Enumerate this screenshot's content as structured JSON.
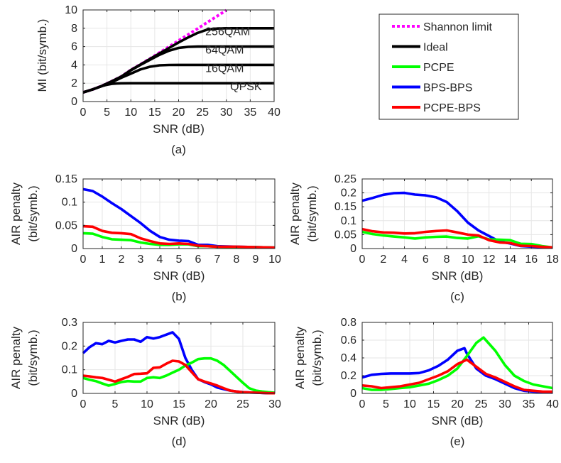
{
  "legend": {
    "entries": [
      {
        "label": "Shannon limit",
        "color": "#ff00ff",
        "dash": true
      },
      {
        "label": "Ideal",
        "color": "#000000",
        "dash": false
      },
      {
        "label": "PCPE",
        "color": "#00ff00",
        "dash": false
      },
      {
        "label": "BPS-BPS",
        "color": "#0000ff",
        "dash": false
      },
      {
        "label": "PCPE-BPS",
        "color": "#ff0000",
        "dash": false
      }
    ]
  },
  "chart_data": [
    {
      "id": "a",
      "type": "line",
      "panel_label": "(a)",
      "xlabel": "SNR (dB)",
      "ylabel": "MI (bit/symb.)",
      "xlim": [
        0,
        40
      ],
      "ylim": [
        0,
        10
      ],
      "xticks": [
        "0",
        "5",
        "10",
        "15",
        "20",
        "25",
        "30",
        "35",
        "40"
      ],
      "yticks": [
        "0",
        "2",
        "4",
        "6",
        "8",
        "10"
      ],
      "grid": true,
      "annotations": [
        {
          "text": "256QAM",
          "x": 25.6,
          "y": 7.0
        },
        {
          "text": "64QAM",
          "x": 25.6,
          "y": 5.0
        },
        {
          "text": "16QAM",
          "x": 25.6,
          "y": 3.0
        },
        {
          "text": "QPSK",
          "x": 30.8,
          "y": 1.0
        }
      ],
      "series": [
        {
          "color": "#ff00ff",
          "dash": true,
          "x": [
            0,
            2,
            4,
            6,
            8,
            10,
            12,
            14,
            16,
            18,
            20,
            22,
            24,
            26,
            28,
            30
          ],
          "y": [
            1.0,
            1.32,
            1.73,
            2.22,
            2.74,
            3.46,
            4.06,
            4.68,
            5.34,
            6.0,
            6.66,
            7.31,
            7.97,
            8.64,
            9.3,
            9.97
          ]
        },
        {
          "color": "#000000",
          "x": [
            0,
            1,
            2,
            3,
            4,
            5,
            6,
            7,
            8,
            10,
            15,
            20,
            25,
            30,
            40
          ],
          "y": [
            1.0,
            1.16,
            1.33,
            1.52,
            1.69,
            1.84,
            1.93,
            1.97,
            1.99,
            2.0,
            2.0,
            2.0,
            2.0,
            2.0,
            2.0
          ]
        },
        {
          "color": "#000000",
          "x": [
            0,
            2,
            4,
            6,
            8,
            10,
            12,
            14,
            16,
            18,
            20,
            25,
            30,
            40
          ],
          "y": [
            1.0,
            1.32,
            1.7,
            2.1,
            2.6,
            3.05,
            3.5,
            3.8,
            3.95,
            3.99,
            4.0,
            4.0,
            4.0,
            4.0
          ]
        },
        {
          "color": "#000000",
          "x": [
            0,
            2,
            4,
            6,
            8,
            10,
            12,
            14,
            16,
            18,
            20,
            22,
            24,
            26,
            30,
            40
          ],
          "y": [
            1.0,
            1.32,
            1.72,
            2.2,
            2.72,
            3.4,
            4.0,
            4.55,
            5.1,
            5.55,
            5.85,
            5.97,
            6.0,
            6.0,
            6.0,
            6.0
          ]
        },
        {
          "color": "#000000",
          "x": [
            0,
            2,
            4,
            6,
            8,
            10,
            12,
            14,
            16,
            18,
            20,
            22,
            24,
            26,
            28,
            30,
            32,
            40
          ],
          "y": [
            1.0,
            1.32,
            1.72,
            2.21,
            2.73,
            3.44,
            4.04,
            4.64,
            5.25,
            5.85,
            6.45,
            7.0,
            7.5,
            7.85,
            7.97,
            8.0,
            8.0,
            8.0
          ]
        }
      ]
    },
    {
      "id": "b",
      "type": "line",
      "panel_label": "(b)",
      "xlabel": "SNR (dB)",
      "ylabel": [
        "AIR penalty",
        "(bit/symb.)"
      ],
      "xlim": [
        0,
        10
      ],
      "ylim": [
        0,
        0.15
      ],
      "xticks": [
        "0",
        "1",
        "2",
        "3",
        "4",
        "5",
        "6",
        "7",
        "8",
        "9",
        "10"
      ],
      "yticks": [
        "0",
        "0.05",
        "0.1",
        "0.15"
      ],
      "grid": true,
      "series": [
        {
          "name": "BPS-BPS",
          "color": "#0000ff",
          "x": [
            0,
            0.5,
            1,
            1.5,
            2,
            2.5,
            3,
            3.5,
            4,
            4.5,
            5,
            5.5,
            6,
            6.5,
            7,
            8,
            9,
            10
          ],
          "y": [
            0.128,
            0.124,
            0.112,
            0.098,
            0.085,
            0.07,
            0.055,
            0.038,
            0.025,
            0.019,
            0.017,
            0.016,
            0.008,
            0.008,
            0.005,
            0.004,
            0.003,
            0.002
          ]
        },
        {
          "name": "PCPE",
          "color": "#00ff00",
          "x": [
            0,
            0.5,
            1,
            1.5,
            2,
            2.5,
            3,
            3.5,
            4,
            4.5,
            5,
            5.5,
            6,
            6.5,
            7,
            8,
            9,
            10
          ],
          "y": [
            0.033,
            0.032,
            0.025,
            0.02,
            0.019,
            0.018,
            0.013,
            0.01,
            0.008,
            0.008,
            0.009,
            0.009,
            0.005,
            0.005,
            0.004,
            0.003,
            0.003,
            0.002
          ]
        },
        {
          "name": "PCPE-BPS",
          "color": "#ff0000",
          "x": [
            0,
            0.5,
            1,
            1.5,
            2,
            2.5,
            3,
            3.5,
            4,
            4.5,
            5,
            5.5,
            6,
            6.5,
            7,
            8,
            9,
            10
          ],
          "y": [
            0.048,
            0.047,
            0.038,
            0.034,
            0.033,
            0.031,
            0.022,
            0.016,
            0.011,
            0.01,
            0.011,
            0.01,
            0.006,
            0.005,
            0.004,
            0.004,
            0.003,
            0.002
          ]
        }
      ]
    },
    {
      "id": "c",
      "type": "line",
      "panel_label": "(c)",
      "xlabel": "SNR (dB)",
      "ylabel": [
        "AIR penalty",
        "(bit/symb.)"
      ],
      "xlim": [
        0,
        18
      ],
      "ylim": [
        0,
        0.25
      ],
      "xticks": [
        "0",
        "2",
        "4",
        "6",
        "8",
        "10",
        "12",
        "14",
        "16",
        "18"
      ],
      "yticks": [
        "0",
        "0.05",
        "0.1",
        "0.15",
        "0.2",
        "0.25"
      ],
      "grid": true,
      "series": [
        {
          "name": "BPS-BPS",
          "color": "#0000ff",
          "x": [
            0,
            1,
            2,
            3,
            4,
            5,
            6,
            7,
            8,
            9,
            10,
            11,
            12,
            13,
            14,
            15,
            16,
            17,
            18
          ],
          "y": [
            0.172,
            0.182,
            0.193,
            0.199,
            0.2,
            0.194,
            0.191,
            0.184,
            0.167,
            0.134,
            0.093,
            0.065,
            0.045,
            0.025,
            0.018,
            0.009,
            0.007,
            0.005,
            0.003
          ]
        },
        {
          "name": "PCPE",
          "color": "#00ff00",
          "x": [
            0,
            1,
            2,
            3,
            4,
            5,
            6,
            7,
            8,
            9,
            10,
            11,
            12,
            13,
            14,
            15,
            16,
            17,
            18
          ],
          "y": [
            0.06,
            0.052,
            0.047,
            0.043,
            0.04,
            0.036,
            0.04,
            0.042,
            0.043,
            0.038,
            0.036,
            0.044,
            0.033,
            0.032,
            0.03,
            0.017,
            0.016,
            0.009,
            0.004
          ]
        },
        {
          "name": "PCPE-BPS",
          "color": "#ff0000",
          "x": [
            0,
            1,
            2,
            3,
            4,
            5,
            6,
            7,
            8,
            9,
            10,
            11,
            12,
            13,
            14,
            15,
            16,
            17,
            18
          ],
          "y": [
            0.07,
            0.062,
            0.058,
            0.057,
            0.054,
            0.055,
            0.06,
            0.063,
            0.065,
            0.058,
            0.05,
            0.047,
            0.03,
            0.022,
            0.02,
            0.01,
            0.009,
            0.006,
            0.004
          ]
        }
      ]
    },
    {
      "id": "d",
      "type": "line",
      "panel_label": "(d)",
      "xlabel": "SNR (dB)",
      "ylabel": [
        "AIR penalty",
        "(bit/symb.)"
      ],
      "xlim": [
        0,
        30
      ],
      "ylim": [
        0,
        0.3
      ],
      "xticks": [
        "0",
        "5",
        "10",
        "15",
        "20",
        "25",
        "30"
      ],
      "yticks": [
        "0",
        "0.1",
        "0.2",
        "0.3"
      ],
      "grid": true,
      "series": [
        {
          "name": "BPS-BPS",
          "color": "#0000ff",
          "x": [
            0,
            1,
            2,
            3,
            4,
            5,
            6,
            7,
            8,
            9,
            10,
            11,
            12,
            13,
            14,
            15,
            16,
            17,
            18,
            19,
            20,
            21,
            22,
            23,
            24,
            25,
            26,
            27,
            28,
            29,
            30
          ],
          "y": [
            0.17,
            0.195,
            0.212,
            0.208,
            0.222,
            0.215,
            0.222,
            0.228,
            0.228,
            0.218,
            0.238,
            0.232,
            0.238,
            0.248,
            0.258,
            0.23,
            0.15,
            0.1,
            0.06,
            0.048,
            0.038,
            0.025,
            0.018,
            0.012,
            0.008,
            0.005,
            0.004,
            0.003,
            0.002,
            0.001,
            0.001
          ]
        },
        {
          "name": "PCPE",
          "color": "#00ff00",
          "x": [
            0,
            1,
            2,
            3,
            4,
            5,
            6,
            7,
            8,
            9,
            10,
            11,
            12,
            13,
            14,
            15,
            16,
            17,
            18,
            19,
            20,
            21,
            22,
            23,
            24,
            25,
            26,
            27,
            28,
            29,
            30
          ],
          "y": [
            0.065,
            0.058,
            0.052,
            0.042,
            0.033,
            0.04,
            0.048,
            0.052,
            0.05,
            0.05,
            0.065,
            0.068,
            0.065,
            0.075,
            0.088,
            0.1,
            0.118,
            0.13,
            0.145,
            0.148,
            0.148,
            0.138,
            0.12,
            0.095,
            0.07,
            0.045,
            0.022,
            0.012,
            0.008,
            0.005,
            0.003
          ]
        },
        {
          "name": "PCPE-BPS",
          "color": "#ff0000",
          "x": [
            0,
            1,
            2,
            3,
            4,
            5,
            6,
            7,
            8,
            9,
            10,
            11,
            12,
            13,
            14,
            15,
            16,
            17,
            18,
            19,
            20,
            21,
            22,
            23,
            24,
            25,
            26,
            27,
            28,
            29,
            30
          ],
          "y": [
            0.075,
            0.072,
            0.068,
            0.065,
            0.058,
            0.05,
            0.06,
            0.07,
            0.082,
            0.083,
            0.085,
            0.108,
            0.11,
            0.125,
            0.138,
            0.135,
            0.12,
            0.09,
            0.06,
            0.05,
            0.042,
            0.033,
            0.022,
            0.012,
            0.008,
            0.005,
            0.004,
            0.003,
            0.002,
            0.001,
            0.001
          ]
        }
      ]
    },
    {
      "id": "e",
      "type": "line",
      "panel_label": "(e)",
      "xlabel": "SNR (dB)",
      "ylabel": [
        "AIR penalty",
        "(bit/symb.)"
      ],
      "xlim": [
        0,
        40
      ],
      "ylim": [
        0,
        0.8
      ],
      "xticks": [
        "0",
        "5",
        "10",
        "15",
        "20",
        "25",
        "30",
        "35",
        "40"
      ],
      "yticks": [
        "0",
        "0.2",
        "0.4",
        "0.6",
        "0.8"
      ],
      "grid": true,
      "series": [
        {
          "name": "BPS-BPS",
          "color": "#0000ff",
          "x": [
            0,
            2,
            4,
            6,
            8,
            10,
            12,
            14,
            16,
            18,
            20,
            21.5,
            22,
            24,
            26,
            28,
            30,
            32,
            34,
            36,
            38,
            40
          ],
          "y": [
            0.18,
            0.21,
            0.22,
            0.225,
            0.225,
            0.225,
            0.23,
            0.26,
            0.31,
            0.38,
            0.48,
            0.51,
            0.45,
            0.28,
            0.2,
            0.16,
            0.11,
            0.06,
            0.03,
            0.02,
            0.015,
            0.01
          ]
        },
        {
          "name": "PCPE",
          "color": "#00ff00",
          "x": [
            0,
            2,
            4,
            6,
            8,
            10,
            12,
            14,
            16,
            18,
            20,
            22,
            24,
            25.5,
            26,
            28,
            30,
            32,
            34,
            36,
            38,
            40
          ],
          "y": [
            0.06,
            0.04,
            0.04,
            0.05,
            0.06,
            0.07,
            0.09,
            0.11,
            0.15,
            0.2,
            0.28,
            0.42,
            0.57,
            0.63,
            0.6,
            0.48,
            0.32,
            0.2,
            0.14,
            0.1,
            0.08,
            0.06
          ]
        },
        {
          "name": "PCPE-BPS",
          "color": "#ff0000",
          "x": [
            0,
            2,
            4,
            6,
            8,
            10,
            12,
            14,
            16,
            18,
            20,
            22,
            24,
            26,
            28,
            30,
            32,
            34,
            36,
            38,
            40
          ],
          "y": [
            0.09,
            0.08,
            0.06,
            0.07,
            0.08,
            0.1,
            0.12,
            0.16,
            0.2,
            0.25,
            0.33,
            0.38,
            0.3,
            0.22,
            0.18,
            0.13,
            0.08,
            0.04,
            0.03,
            0.02,
            0.02
          ]
        }
      ]
    }
  ]
}
